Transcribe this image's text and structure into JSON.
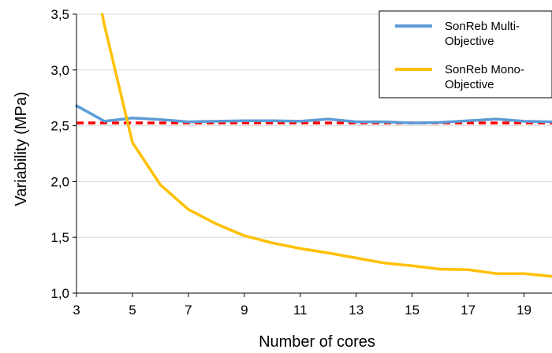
{
  "chart_data": {
    "type": "line",
    "xlabel": "Number of cores",
    "ylabel": "Variability (MPa)",
    "xlim": [
      3,
      20
    ],
    "ylim": [
      1.0,
      3.5
    ],
    "x_ticks": [
      3,
      5,
      7,
      9,
      11,
      13,
      15,
      17,
      19
    ],
    "x_tick_labels": [
      "3",
      "5",
      "7",
      "9",
      "11",
      "13",
      "15",
      "17",
      "19"
    ],
    "y_ticks": [
      1.0,
      1.5,
      2.0,
      2.5,
      3.0,
      3.5
    ],
    "y_tick_labels": [
      "1,0",
      "1,5",
      "2,0",
      "2,5",
      "3,0",
      "3,5"
    ],
    "grid": "horizontal",
    "legend_position": "top-right",
    "series": [
      {
        "name": "SonReb Multi-Objective",
        "name_lines": [
          "SonReb Multi-",
          "Objective"
        ],
        "color": "#5B9BD5",
        "x": [
          3,
          4,
          5,
          6,
          7,
          8,
          9,
          10,
          11,
          12,
          13,
          14,
          15,
          16,
          17,
          18,
          19,
          20
        ],
        "values": [
          2.68,
          2.54,
          2.57,
          2.555,
          2.535,
          2.54,
          2.545,
          2.545,
          2.54,
          2.56,
          2.535,
          2.535,
          2.525,
          2.53,
          2.545,
          2.56,
          2.54,
          2.535
        ]
      },
      {
        "name": "SonReb Mono-Objective",
        "name_lines": [
          "SonReb Mono-",
          "Objective"
        ],
        "color": "#FFC000",
        "x": [
          3.92,
          4,
          5,
          6,
          7,
          8,
          9,
          10,
          11,
          12,
          13,
          14,
          15,
          16,
          17,
          18,
          19,
          20
        ],
        "values": [
          3.5,
          3.4,
          2.35,
          1.97,
          1.75,
          1.62,
          1.515,
          1.45,
          1.4,
          1.36,
          1.315,
          1.27,
          1.245,
          1.215,
          1.21,
          1.175,
          1.175,
          1.15
        ]
      }
    ],
    "reference_line": {
      "y": 2.525,
      "color": "#FF0000",
      "style": "dashed"
    }
  }
}
